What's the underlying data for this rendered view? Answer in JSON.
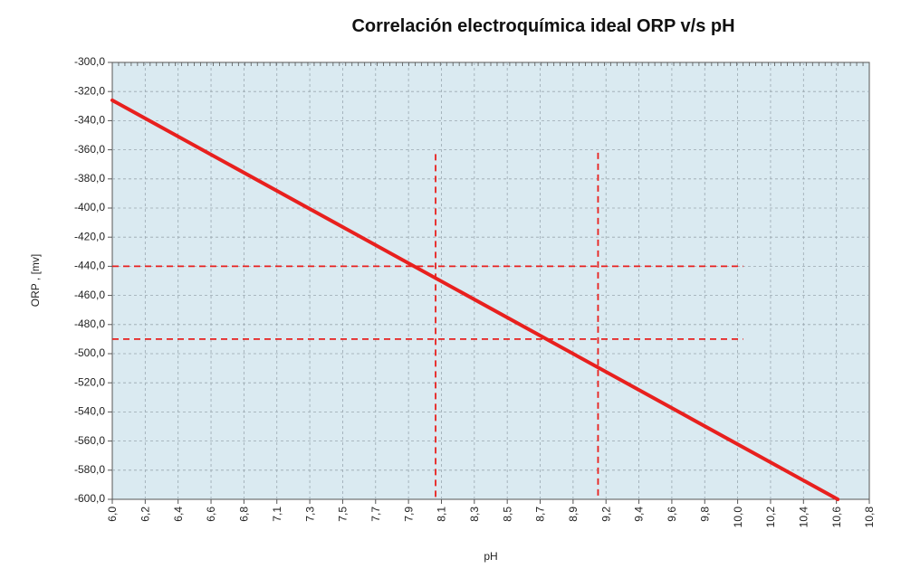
{
  "chart_data": {
    "type": "line",
    "title": "Correlación electroquímica ideal ORP v/s pH",
    "xlabel": "pH",
    "ylabel": "ORP , [mv]",
    "xlim": [
      6.0,
      10.8
    ],
    "ylim": [
      -600,
      -300
    ],
    "x_tick_labels": [
      "6,0",
      "6,2",
      "6,4",
      "6,6",
      "6,8",
      "7,1",
      "7,3",
      "7,5",
      "7,7",
      "7,9",
      "8,1",
      "8,3",
      "8,5",
      "8,7",
      "8,9",
      "9,2",
      "9,4",
      "9,6",
      "9,8",
      "10,0",
      "10,2",
      "10,4",
      "10,6",
      "10,8"
    ],
    "y_tick_labels": [
      "-300,0",
      "-320,0",
      "-340,0",
      "-360,0",
      "-380,0",
      "-400,0",
      "-420,0",
      "-440,0",
      "-460,0",
      "-480,0",
      "-500,0",
      "-520,0",
      "-540,0",
      "-560,0",
      "-580,0",
      "-600,0"
    ],
    "grid": true,
    "background_color": "#daeaf1",
    "grid_color": "#9aa8b0",
    "series": [
      {
        "color": "#e8201e",
        "x": [
          6.0,
          10.6
        ],
        "y": [
          -326,
          -600
        ]
      }
    ],
    "reference_lines": {
      "color": "#e8201e",
      "horizontal": [
        {
          "y": -440,
          "x_end": 10.0
        },
        {
          "y": -490,
          "x_end": 10.0
        }
      ],
      "vertical": [
        {
          "x": 8.05,
          "y_top": -363
        },
        {
          "x": 9.08,
          "y_top": -362
        }
      ]
    }
  }
}
